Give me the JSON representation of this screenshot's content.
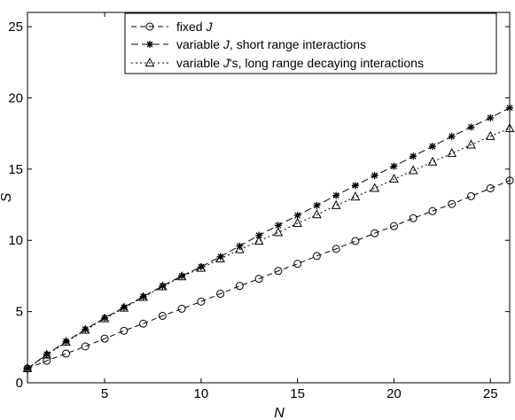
{
  "chart_data": {
    "type": "line",
    "xlabel": "N",
    "ylabel": "S",
    "xlim": [
      1,
      26
    ],
    "ylim": [
      0,
      26
    ],
    "xticks": [
      5,
      10,
      15,
      20,
      25
    ],
    "yticks": [
      0,
      5,
      10,
      15,
      20,
      25
    ],
    "grid": false,
    "legend_position": "top-right",
    "x": [
      1,
      2,
      3,
      4,
      5,
      6,
      7,
      8,
      9,
      10,
      11,
      12,
      13,
      14,
      15,
      16,
      17,
      18,
      19,
      20,
      21,
      22,
      23,
      24,
      25,
      26
    ],
    "series": [
      {
        "name": "fixed J",
        "legend": {
          "pre": "fixed ",
          "italic": "J",
          "post": ""
        },
        "marker": "circle",
        "dash": "6,4",
        "values": [
          1.0,
          1.55,
          2.05,
          2.55,
          3.1,
          3.65,
          4.15,
          4.7,
          5.2,
          5.7,
          6.25,
          6.8,
          7.3,
          7.85,
          8.35,
          8.9,
          9.4,
          9.95,
          10.5,
          11.0,
          11.55,
          12.05,
          12.55,
          13.1,
          13.65,
          14.2
        ]
      },
      {
        "name": "variable J, short range interactions",
        "legend": {
          "pre": "variable ",
          "italic": "J",
          "post": ", short range interactions"
        },
        "marker": "star",
        "dash": "8,4",
        "values": [
          1.0,
          2.0,
          2.9,
          3.75,
          4.55,
          5.3,
          6.05,
          6.8,
          7.5,
          8.15,
          8.85,
          9.6,
          10.35,
          11.05,
          11.75,
          12.45,
          13.15,
          13.85,
          14.55,
          15.2,
          15.9,
          16.6,
          17.3,
          17.95,
          18.6,
          19.3
        ]
      },
      {
        "name": "variable J's, long range decaying interactions",
        "legend": {
          "pre": "variable ",
          "italic": "J",
          "post": "'s, long range decaying interactions"
        },
        "marker": "triangle",
        "dash": "2,3",
        "values": [
          1.0,
          1.95,
          2.85,
          3.7,
          4.5,
          5.25,
          6.0,
          6.75,
          7.45,
          8.05,
          8.7,
          9.35,
          9.95,
          10.55,
          11.2,
          11.8,
          12.45,
          13.05,
          13.65,
          14.3,
          14.9,
          15.5,
          16.1,
          16.7,
          17.3,
          17.85
        ]
      }
    ]
  }
}
